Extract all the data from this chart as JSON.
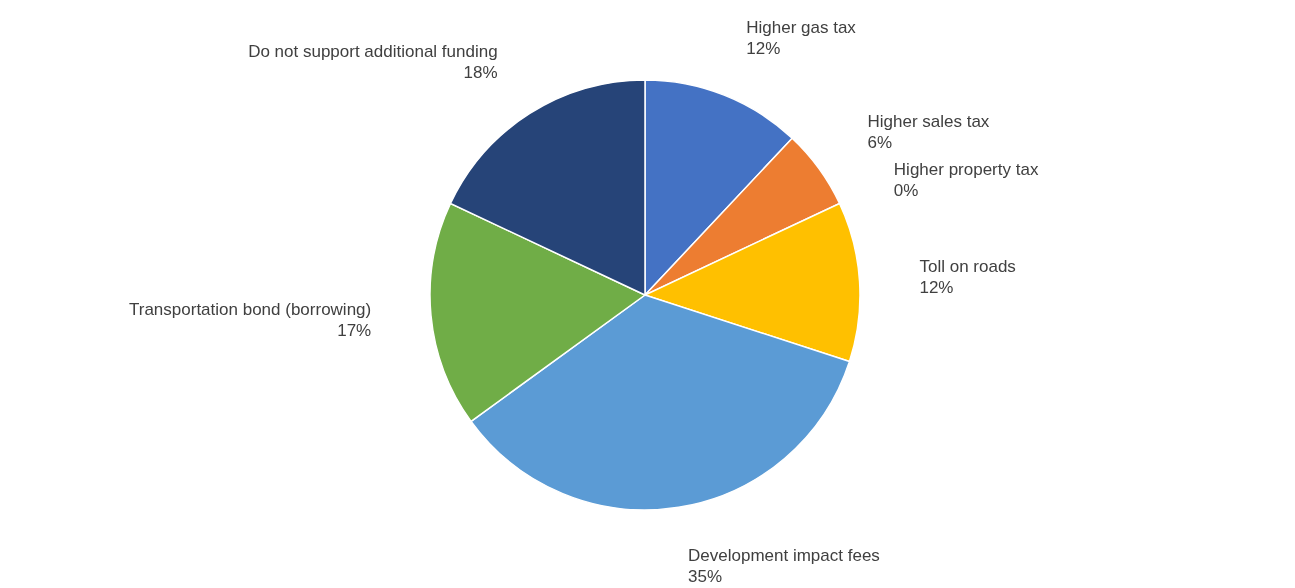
{
  "chart_data": {
    "type": "pie",
    "categories": [
      "Higher gas tax",
      "Higher sales tax",
      "Higher property tax",
      "Toll on roads",
      "Development impact fees",
      "Transportation bond (borrowing)",
      "Do not support additional funding"
    ],
    "values": [
      12,
      6,
      0,
      12,
      35,
      17,
      18
    ],
    "value_labels": [
      "12%",
      "6%",
      "0%",
      "12%",
      "35%",
      "17%",
      "18%"
    ],
    "colors": [
      "#4472c4",
      "#ed7d31",
      "#a5a5a5",
      "#ffc000",
      "#5b9bd5",
      "#70ad47",
      "#264478"
    ],
    "legend": false
  }
}
